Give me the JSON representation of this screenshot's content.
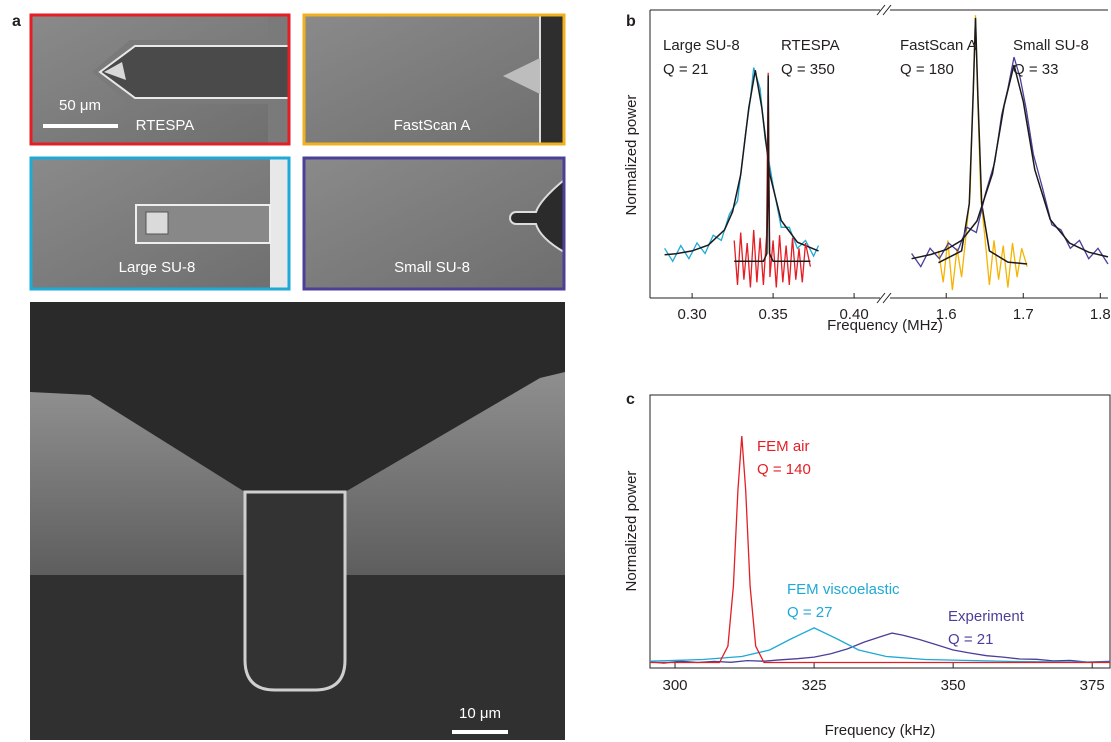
{
  "panel_a": {
    "label": "a",
    "thumbnails": [
      {
        "label": "RTESPA",
        "color": "#e31e25"
      },
      {
        "label": "FastScan A",
        "color": "#f2b01e"
      },
      {
        "label": "Large SU-8",
        "color": "#1fa9d6"
      },
      {
        "label": "Small SU-8",
        "color": "#4b3f99"
      }
    ],
    "scale_bar_top": "50 μm",
    "scale_bar_bottom": "10 μm"
  },
  "chart_data": [
    {
      "type": "line",
      "panel": "b",
      "y_label": "Normalized power",
      "x_label": "Frequency (MHz)",
      "ylim": [
        0,
        1.1
      ],
      "fit_color": "#1a1a1a",
      "x_segments": [
        {
          "xlim": [
            0.274,
            0.416
          ],
          "xticks": [
            {
              "value": 0.3,
              "label": "0.30"
            },
            0.35,
            {
              "value": 0.4,
              "label": "0.40"
            }
          ]
        },
        {
          "xlim": [
            1.527,
            1.81
          ],
          "xticks": [
            1.6,
            1.7,
            1.8
          ]
        }
      ],
      "series": [
        {
          "name": "Large SU-8",
          "annotation": "Q = 21",
          "color": "#1fa9d6",
          "segment": 0,
          "x": [
            0.283,
            0.288,
            0.293,
            0.298,
            0.303,
            0.308,
            0.313,
            0.318,
            0.323,
            0.328,
            0.333,
            0.336,
            0.338,
            0.34,
            0.342,
            0.345,
            0.35,
            0.355,
            0.36,
            0.365,
            0.37,
            0.375,
            0.378
          ],
          "values": [
            0.19,
            0.14,
            0.2,
            0.15,
            0.21,
            0.17,
            0.24,
            0.22,
            0.32,
            0.37,
            0.63,
            0.76,
            0.88,
            0.84,
            0.8,
            0.61,
            0.43,
            0.27,
            0.27,
            0.19,
            0.22,
            0.16,
            0.2
          ],
          "fit": {
            "x": [
              0.283,
              0.29,
              0.3,
              0.31,
              0.32,
              0.325,
              0.33,
              0.335,
              0.339,
              0.343,
              0.348,
              0.355,
              0.365,
              0.378
            ],
            "values": [
              0.165,
              0.169,
              0.18,
              0.202,
              0.26,
              0.33,
              0.471,
              0.727,
              0.87,
              0.727,
              0.471,
              0.296,
              0.213,
              0.18
            ]
          }
        },
        {
          "name": "RTESPA",
          "annotation": "Q = 350",
          "color": "#e31e25",
          "segment": 0,
          "x": [
            0.326,
            0.328,
            0.33,
            0.332,
            0.334,
            0.336,
            0.338,
            0.34,
            0.342,
            0.344,
            0.346,
            0.347,
            0.348,
            0.35,
            0.352,
            0.354,
            0.356,
            0.358,
            0.36,
            0.362,
            0.364,
            0.366,
            0.368,
            0.37,
            0.373
          ],
          "values": [
            0.22,
            0.05,
            0.25,
            0.07,
            0.21,
            0.04,
            0.26,
            0.06,
            0.23,
            0.05,
            0.24,
            0.86,
            0.08,
            0.22,
            0.04,
            0.24,
            0.06,
            0.2,
            0.05,
            0.23,
            0.07,
            0.19,
            0.06,
            0.21,
            0.12
          ],
          "fit": {
            "x": [
              0.326,
              0.344,
              0.3462,
              0.3467,
              0.347,
              0.3473,
              0.3478,
              0.35,
              0.373
            ],
            "values": [
              0.14,
              0.14,
              0.17,
              0.45,
              0.85,
              0.45,
              0.17,
              0.14,
              0.14
            ]
          }
        },
        {
          "name": "FastScan A",
          "annotation": "Q = 180",
          "color": "#f5b400",
          "segment": 1,
          "x": [
            1.59,
            1.596,
            1.602,
            1.608,
            1.614,
            1.62,
            1.626,
            1.631,
            1.635,
            1.638,
            1.641,
            1.645,
            1.65,
            1.656,
            1.662,
            1.668,
            1.674,
            1.68,
            1.686,
            1.692,
            1.698,
            1.705
          ],
          "values": [
            0.18,
            0.06,
            0.22,
            0.03,
            0.19,
            0.08,
            0.25,
            0.4,
            0.8,
            1.08,
            0.75,
            0.38,
            0.24,
            0.05,
            0.22,
            0.07,
            0.2,
            0.04,
            0.21,
            0.08,
            0.19,
            0.12
          ],
          "fit": {
            "x": [
              1.59,
              1.62,
              1.63,
              1.635,
              1.638,
              1.641,
              1.646,
              1.656,
              1.68,
              1.705
            ],
            "values": [
              0.135,
              0.18,
              0.36,
              0.78,
              1.07,
              0.78,
              0.36,
              0.18,
              0.137,
              0.13
            ]
          }
        },
        {
          "name": "Small SU-8",
          "annotation": "Q = 33",
          "color": "#4b3f99",
          "segment": 1,
          "x": [
            1.555,
            1.567,
            1.579,
            1.591,
            1.603,
            1.615,
            1.627,
            1.639,
            1.651,
            1.663,
            1.672,
            1.68,
            1.688,
            1.696,
            1.704,
            1.713,
            1.725,
            1.737,
            1.749,
            1.761,
            1.773,
            1.785,
            1.797,
            1.81
          ],
          "values": [
            0.17,
            0.12,
            0.19,
            0.15,
            0.21,
            0.18,
            0.27,
            0.25,
            0.4,
            0.52,
            0.7,
            0.8,
            0.92,
            0.84,
            0.72,
            0.55,
            0.42,
            0.28,
            0.26,
            0.19,
            0.22,
            0.15,
            0.19,
            0.13
          ],
          "fit": {
            "x": [
              1.555,
              1.58,
              1.6,
              1.62,
              1.64,
              1.66,
              1.675,
              1.688,
              1.7,
              1.715,
              1.735,
              1.76,
              1.785,
              1.81
            ],
            "values": [
              0.15,
              0.166,
              0.185,
              0.22,
              0.294,
              0.475,
              0.733,
              0.89,
              0.75,
              0.49,
              0.3,
              0.21,
              0.175,
              0.157
            ]
          }
        }
      ]
    },
    {
      "type": "line",
      "panel": "c",
      "y_label": "Normalized power",
      "x_label": "Frequency (kHz)",
      "xlim": [
        295.5,
        378.2
      ],
      "xticks": [
        300,
        325,
        350,
        375
      ],
      "ylim": [
        0,
        1
      ],
      "series": [
        {
          "name": "FEM air",
          "annotation": "Q = 140",
          "color": "#e31e25",
          "x": [
            295.5,
            308,
            309.5,
            310.5,
            311.3,
            312,
            312.7,
            313.5,
            314.5,
            316,
            378.2
          ],
          "values": [
            0.02,
            0.02,
            0.08,
            0.3,
            0.65,
            0.85,
            0.65,
            0.3,
            0.08,
            0.02,
            0.02
          ]
        },
        {
          "name": "FEM viscoelastic",
          "annotation": "Q = 27",
          "color": "#1fa9d6",
          "x": [
            295.5,
            305,
            312,
            317,
            321,
            325,
            329,
            333,
            338,
            345,
            360,
            378.2
          ],
          "values": [
            0.025,
            0.031,
            0.042,
            0.066,
            0.108,
            0.147,
            0.108,
            0.066,
            0.042,
            0.031,
            0.024,
            0.021
          ]
        },
        {
          "name": "Experiment",
          "annotation": "Q = 21",
          "color": "#4b3f99",
          "x": [
            295.5,
            298,
            301,
            304,
            307,
            310,
            313,
            316,
            319,
            322,
            325,
            328,
            331,
            334,
            337,
            339,
            341,
            344,
            347,
            350,
            353,
            356,
            359,
            362,
            365,
            368,
            371,
            374,
            378.2
          ],
          "values": [
            0.022,
            0.018,
            0.025,
            0.02,
            0.024,
            0.021,
            0.027,
            0.025,
            0.03,
            0.034,
            0.04,
            0.052,
            0.07,
            0.095,
            0.115,
            0.128,
            0.12,
            0.104,
            0.085,
            0.066,
            0.055,
            0.045,
            0.04,
            0.033,
            0.032,
            0.026,
            0.028,
            0.022,
            0.024
          ]
        }
      ]
    }
  ]
}
